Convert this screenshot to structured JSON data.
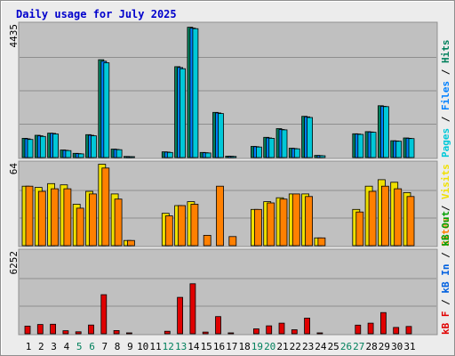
{
  "title": "Daily usage for July 2025",
  "colors": {
    "background": "#ececec",
    "frame_dark": "#8f8f8f",
    "frame_light": "#ffffff",
    "panel": "#c0c0c0",
    "grid": "#8e8e8e",
    "title": "#0000cc",
    "hits": "#00805c",
    "files": "#0080ff",
    "pages": "#00c8d8",
    "visits": "#f0e000",
    "sites": "#ff8000",
    "kb_in": "#0060e0",
    "kb_out": "#00a000",
    "kb_f": "#e00000",
    "weekend_label": "#00805c",
    "weekday_label": "#000000"
  },
  "chart_data": [
    {
      "type": "bar",
      "panel": "hits",
      "axis_max_label": "4435",
      "ylim": [
        0,
        4435
      ],
      "legend": [
        "Pages",
        "Files",
        "Hits"
      ],
      "categories": [
        "1",
        "2",
        "3",
        "4",
        "5",
        "6",
        "7",
        "8",
        "9",
        "10",
        "11",
        "12",
        "13",
        "14",
        "15",
        "16",
        "17",
        "18",
        "19",
        "20",
        "21",
        "22",
        "23",
        "24",
        "25",
        "26",
        "27",
        "28",
        "29",
        "30",
        "31"
      ],
      "series": [
        {
          "name": "Hits",
          "values": [
            640,
            740,
            810,
            250,
            140,
            760,
            3250,
            280,
            35,
            0,
            0,
            190,
            3020,
            4330,
            170,
            1500,
            45,
            0,
            370,
            670,
            960,
            310,
            1370,
            70,
            0,
            0,
            790,
            860,
            1720,
            560,
            650
          ]
        },
        {
          "name": "Files",
          "values": [
            620,
            720,
            800,
            240,
            130,
            740,
            3200,
            270,
            30,
            0,
            0,
            180,
            2990,
            4300,
            160,
            1480,
            40,
            0,
            360,
            650,
            930,
            300,
            1350,
            65,
            0,
            0,
            780,
            850,
            1700,
            550,
            640
          ]
        },
        {
          "name": "Pages",
          "values": [
            600,
            700,
            780,
            230,
            120,
            720,
            3150,
            260,
            25,
            0,
            0,
            170,
            2950,
            4280,
            150,
            1460,
            35,
            0,
            350,
            640,
            920,
            290,
            1330,
            60,
            0,
            0,
            770,
            840,
            1690,
            540,
            630
          ]
        }
      ]
    },
    {
      "type": "bar",
      "panel": "visits",
      "axis_max_label": "64",
      "ylim": [
        0,
        64
      ],
      "legend": [
        "Visits",
        "Sites",
        "Out",
        "Sites"
      ],
      "categories": [
        "1",
        "2",
        "3",
        "4",
        "5",
        "6",
        "7",
        "8",
        "9",
        "10",
        "11",
        "12",
        "13",
        "14",
        "15",
        "16",
        "17",
        "18",
        "19",
        "20",
        "21",
        "22",
        "23",
        "24",
        "25",
        "26",
        "27",
        "28",
        "29",
        "30",
        "31"
      ],
      "series": [
        {
          "name": "Visits",
          "values": [
            46,
            45,
            48,
            47,
            32,
            42,
            63,
            40,
            4,
            0,
            0,
            25,
            31,
            34,
            0,
            0,
            0,
            0,
            28,
            34,
            37,
            40,
            40,
            6,
            0,
            0,
            28,
            46,
            51,
            49,
            41
          ]
        },
        {
          "name": "Sites",
          "values": [
            46,
            42,
            44,
            44,
            29,
            40,
            60,
            36,
            4,
            0,
            0,
            23,
            31,
            32,
            8,
            46,
            7,
            0,
            28,
            33,
            36,
            40,
            38,
            6,
            0,
            0,
            26,
            42,
            46,
            44,
            38
          ]
        }
      ]
    },
    {
      "type": "bar",
      "panel": "kbytes",
      "axis_max_label": "6252",
      "ylim": [
        0,
        6252
      ],
      "legend": [
        "kB F",
        "kB In",
        "kB Out"
      ],
      "categories": [
        "1",
        "2",
        "3",
        "4",
        "5",
        "6",
        "7",
        "8",
        "9",
        "10",
        "11",
        "12",
        "13",
        "14",
        "15",
        "16",
        "17",
        "18",
        "19",
        "20",
        "21",
        "22",
        "23",
        "24",
        "25",
        "26",
        "27",
        "28",
        "29",
        "30",
        "31"
      ],
      "series": [
        {
          "name": "kB F",
          "values": [
            580,
            700,
            720,
            230,
            150,
            660,
            2950,
            240,
            50,
            0,
            0,
            190,
            2750,
            3780,
            130,
            1300,
            60,
            0,
            370,
            600,
            800,
            300,
            1180,
            70,
            0,
            0,
            650,
            800,
            1600,
            480,
            550
          ]
        }
      ]
    }
  ],
  "x_axis": {
    "labels": [
      "1",
      "2",
      "3",
      "4",
      "5",
      "6",
      "7",
      "8",
      "9",
      "10",
      "11",
      "12",
      "13",
      "14",
      "15",
      "16",
      "17",
      "18",
      "19",
      "20",
      "21",
      "22",
      "23",
      "24",
      "25",
      "26",
      "27",
      "28",
      "29",
      "30",
      "31"
    ],
    "weekend_days": [
      "5",
      "6",
      "12",
      "13",
      "19",
      "20",
      "26",
      "27"
    ]
  }
}
